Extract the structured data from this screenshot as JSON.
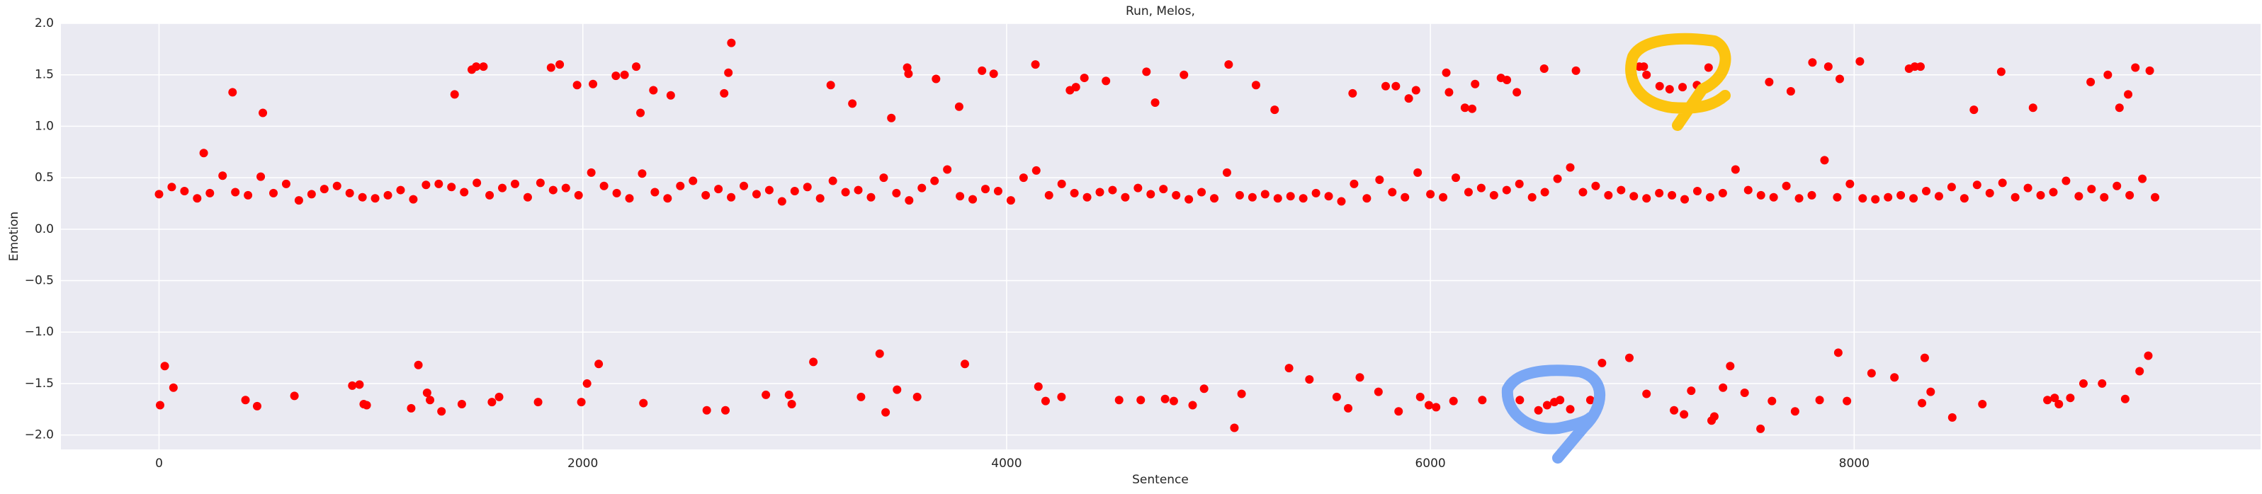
{
  "chart_data": {
    "type": "scatter",
    "title": "Run, Melos,",
    "xlabel": "Sentence",
    "ylabel": "Emotion",
    "color": "#ff0000",
    "grid": true,
    "xlim": [
      -463,
      9918
    ],
    "ylim": [
      -2.14,
      2.0
    ],
    "xticks": [
      0,
      2000,
      4000,
      6000,
      8000
    ],
    "yticks": [
      {
        "value": -2.0,
        "label": "−2.0"
      },
      {
        "value": -1.5,
        "label": "−1.5"
      },
      {
        "value": -1.0,
        "label": "−1.0"
      },
      {
        "value": -0.5,
        "label": "−0.5"
      },
      {
        "value": 0.0,
        "label": "0.0"
      },
      {
        "value": 0.5,
        "label": "0.5"
      },
      {
        "value": 1.0,
        "label": "1.0"
      },
      {
        "value": 1.5,
        "label": "1.5"
      },
      {
        "value": 2.0,
        "label": "2.0"
      }
    ],
    "x": [
      0,
      60,
      120,
      180,
      240,
      300,
      360,
      420,
      480,
      540,
      600,
      660,
      720,
      780,
      840,
      900,
      960,
      1020,
      1080,
      1140,
      1200,
      1260,
      1320,
      1380,
      1440,
      1500,
      1560,
      1620,
      1680,
      1740,
      1800,
      1860,
      1920,
      1980,
      2040,
      2100,
      2160,
      2220,
      2280,
      2340,
      2400,
      2460,
      2520,
      2580,
      2640,
      2700,
      2760,
      2820,
      2880,
      2940,
      3000,
      3060,
      3120,
      3180,
      3240,
      3300,
      3360,
      3420,
      3480,
      3540,
      3600,
      3660,
      3720,
      3780,
      3840,
      3900,
      3960,
      4020,
      4080,
      4140,
      4200,
      4260,
      4320,
      4380,
      4440,
      4500,
      4560,
      4620,
      4680,
      4740,
      4800,
      4860,
      4920,
      4980,
      5040,
      5100,
      5160,
      5220,
      5280,
      5340,
      5400,
      5460,
      5520,
      5580,
      5640,
      5700,
      5760,
      5820,
      5880,
      5940,
      6000,
      6060,
      6120,
      6180,
      6240,
      6300,
      6360,
      6420,
      6480,
      6540,
      6600,
      6660,
      6720,
      6780,
      6840,
      6900,
      6960,
      7020,
      7080,
      7140,
      7200,
      7260,
      7320,
      7380,
      7440,
      7500,
      7560,
      7620,
      7680,
      7740,
      7800,
      7860,
      7920,
      7980,
      8040,
      8100,
      8160,
      8220,
      8280,
      8340,
      8400,
      8460,
      8520,
      8580,
      8640,
      8700,
      8760,
      8820,
      8880,
      8940,
      9000,
      9060,
      9120,
      9180,
      9240,
      9300,
      9360,
      9420,
      347,
      490,
      211,
      1395,
      1476,
      1497,
      1531,
      1850,
      1891,
      1973,
      2048,
      2156,
      2197,
      2252,
      2272,
      2333,
      2415,
      2667,
      2687,
      2701,
      3170,
      3272,
      3456,
      3531,
      3537,
      3667,
      3776,
      3884,
      3939,
      4136,
      4299,
      4327,
      4367,
      4469,
      4660,
      4701,
      4837,
      5048,
      5177,
      5265,
      5633,
      5789,
      5837,
      5898,
      5932,
      6075,
      6088,
      6163,
      6197,
      6211,
      6333,
      6361,
      6408,
      6537,
      6687,
      6986,
      7007,
      7020,
      7082,
      7129,
      7190,
      7258,
      7313,
      7599,
      7701,
      7803,
      7878,
      7932,
      8027,
      8259,
      8286,
      8313,
      8565,
      8694,
      8844,
      9116,
      9197,
      9252,
      9293,
      9327,
      9395,
      5,
      27,
      68,
      408,
      463,
      639,
      912,
      946,
      966,
      980,
      1190,
      1224,
      1265,
      1279,
      1333,
      1429,
      1571,
      1605,
      1789,
      1993,
      2020,
      2075,
      2286,
      2585,
      2673,
      2864,
      2973,
      2986,
      3088,
      3313,
      3401,
      3429,
      3483,
      3578,
      3803,
      4150,
      4184,
      4259,
      4531,
      4633,
      4748,
      4789,
      4878,
      4932,
      5075,
      5109,
      5333,
      5429,
      5558,
      5612,
      5667,
      5755,
      5850,
      5952,
      5993,
      6027,
      6109,
      6245,
      6422,
      6510,
      6551,
      6585,
      6612,
      6660,
      6755,
      6810,
      6939,
      7020,
      7150,
      7197,
      7231,
      7327,
      7340,
      7381,
      7415,
      7483,
      7558,
      7612,
      7721,
      7837,
      7925,
      7966,
      8082,
      8190,
      8320,
      8333,
      8361,
      8463,
      8605,
      8912,
      8946,
      8966,
      9020,
      9082,
      9170,
      9279,
      9347,
      9388
    ],
    "y": [
      0.34,
      0.41,
      0.37,
      0.3,
      0.35,
      0.52,
      0.36,
      0.33,
      0.51,
      0.35,
      0.44,
      0.28,
      0.34,
      0.39,
      0.42,
      0.35,
      0.31,
      0.3,
      0.33,
      0.38,
      0.29,
      0.43,
      0.44,
      0.41,
      0.36,
      0.45,
      0.33,
      0.4,
      0.44,
      0.31,
      0.45,
      0.38,
      0.4,
      0.33,
      0.55,
      0.42,
      0.35,
      0.3,
      0.54,
      0.36,
      0.3,
      0.42,
      0.47,
      0.33,
      0.39,
      0.31,
      0.42,
      0.34,
      0.38,
      0.27,
      0.37,
      0.41,
      0.3,
      0.47,
      0.36,
      0.38,
      0.31,
      0.5,
      0.35,
      0.28,
      0.4,
      0.47,
      0.58,
      0.32,
      0.29,
      0.39,
      0.37,
      0.28,
      0.5,
      0.57,
      0.33,
      0.44,
      0.35,
      0.31,
      0.36,
      0.38,
      0.31,
      0.4,
      0.34,
      0.39,
      0.33,
      0.29,
      0.36,
      0.3,
      0.55,
      0.33,
      0.31,
      0.34,
      0.3,
      0.32,
      0.3,
      0.35,
      0.32,
      0.27,
      0.44,
      0.3,
      0.48,
      0.36,
      0.31,
      0.55,
      0.34,
      0.31,
      0.5,
      0.36,
      0.4,
      0.33,
      0.38,
      0.44,
      0.31,
      0.36,
      0.49,
      0.6,
      0.36,
      0.42,
      0.33,
      0.38,
      0.32,
      0.3,
      0.35,
      0.33,
      0.29,
      0.37,
      0.31,
      0.35,
      0.58,
      0.38,
      0.33,
      0.31,
      0.42,
      0.3,
      0.33,
      0.67,
      0.31,
      0.44,
      0.3,
      0.29,
      0.31,
      0.33,
      0.3,
      0.37,
      0.32,
      0.41,
      0.3,
      0.43,
      0.35,
      0.45,
      0.31,
      0.4,
      0.33,
      0.36,
      0.47,
      0.32,
      0.39,
      0.31,
      0.42,
      0.33,
      0.49,
      0.31,
      1.33,
      1.13,
      0.74,
      1.31,
      1.55,
      1.58,
      1.58,
      1.57,
      1.6,
      1.4,
      1.41,
      1.49,
      1.5,
      1.58,
      1.13,
      1.35,
      1.3,
      1.32,
      1.52,
      1.81,
      1.4,
      1.22,
      1.08,
      1.57,
      1.51,
      1.46,
      1.19,
      1.54,
      1.51,
      1.6,
      1.35,
      1.38,
      1.47,
      1.44,
      1.53,
      1.23,
      1.5,
      1.6,
      1.4,
      1.16,
      1.32,
      1.39,
      1.39,
      1.27,
      1.35,
      1.52,
      1.33,
      1.18,
      1.17,
      1.41,
      1.47,
      1.45,
      1.33,
      1.56,
      1.54,
      1.58,
      1.58,
      1.5,
      1.39,
      1.36,
      1.38,
      1.4,
      1.57,
      1.43,
      1.34,
      1.62,
      1.58,
      1.46,
      1.63,
      1.56,
      1.58,
      1.58,
      1.16,
      1.53,
      1.18,
      1.43,
      1.5,
      1.18,
      1.31,
      1.57,
      1.54,
      -1.71,
      -1.33,
      -1.54,
      -1.66,
      -1.72,
      -1.62,
      -1.52,
      -1.51,
      -1.7,
      -1.71,
      -1.74,
      -1.32,
      -1.59,
      -1.66,
      -1.77,
      -1.7,
      -1.68,
      -1.63,
      -1.68,
      -1.68,
      -1.5,
      -1.31,
      -1.69,
      -1.76,
      -1.76,
      -1.61,
      -1.61,
      -1.7,
      -1.29,
      -1.63,
      -1.21,
      -1.78,
      -1.56,
      -1.63,
      -1.31,
      -1.53,
      -1.67,
      -1.63,
      -1.66,
      -1.66,
      -1.65,
      -1.67,
      -1.71,
      -1.55,
      -1.93,
      -1.6,
      -1.35,
      -1.46,
      -1.63,
      -1.74,
      -1.44,
      -1.58,
      -1.77,
      -1.63,
      -1.71,
      -1.73,
      -1.67,
      -1.66,
      -1.66,
      -1.76,
      -1.71,
      -1.68,
      -1.66,
      -1.75,
      -1.66,
      -1.3,
      -1.25,
      -1.6,
      -1.76,
      -1.8,
      -1.57,
      -1.86,
      -1.82,
      -1.54,
      -1.33,
      -1.59,
      -1.94,
      -1.67,
      -1.77,
      -1.66,
      -1.2,
      -1.67,
      -1.4,
      -1.44,
      -1.69,
      -1.25,
      -1.58,
      -1.83,
      -1.7,
      -1.66,
      -1.64,
      -1.7,
      -1.64,
      -1.5,
      -1.5,
      -1.65,
      -1.38,
      -1.23
    ]
  }
}
